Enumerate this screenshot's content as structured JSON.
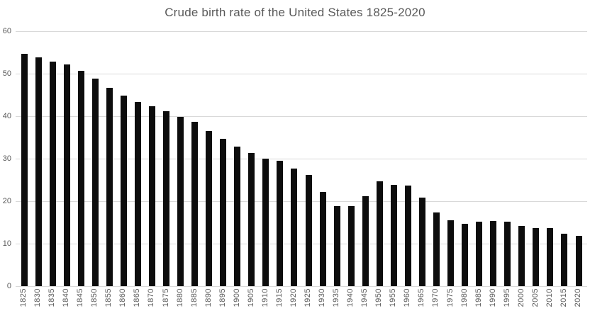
{
  "chart_data": {
    "type": "bar",
    "title": "Crude birth rate of the United States 1825-2020",
    "xlabel": "",
    "ylabel": "",
    "categories": [
      "1825",
      "1830",
      "1835",
      "1840",
      "1845",
      "1850",
      "1855",
      "1860",
      "1865",
      "1870",
      "1875",
      "1880",
      "1885",
      "1890",
      "1895",
      "1900",
      "1905",
      "1910",
      "1915",
      "1920",
      "1925",
      "1930",
      "1935",
      "1940",
      "1945",
      "1950",
      "1955",
      "1960",
      "1965",
      "1970",
      "1975",
      "1980",
      "1985",
      "1990",
      "1995",
      "2000",
      "2005",
      "2010",
      "2015",
      "2020"
    ],
    "values": [
      54.6,
      53.9,
      52.9,
      52.1,
      50.6,
      48.9,
      46.7,
      44.9,
      43.3,
      42.3,
      41.2,
      39.9,
      38.6,
      36.5,
      34.7,
      32.8,
      31.3,
      30.0,
      29.5,
      27.7,
      26.1,
      22.2,
      18.9,
      18.8,
      21.1,
      24.6,
      23.9,
      23.6,
      20.8,
      17.4,
      15.5,
      14.7,
      15.1,
      15.4,
      15.2,
      14.1,
      13.7,
      13.6,
      12.3,
      11.8
    ],
    "ylim": [
      0,
      60
    ],
    "yticks": [
      0,
      10,
      20,
      30,
      40,
      50,
      60
    ],
    "grid": true,
    "legend": "none",
    "colors": {
      "bar": "#0d0d0d",
      "gridline": "#d9d9d9",
      "axis_labels": "#595959",
      "title": "#595959",
      "background": "#ffffff"
    }
  }
}
